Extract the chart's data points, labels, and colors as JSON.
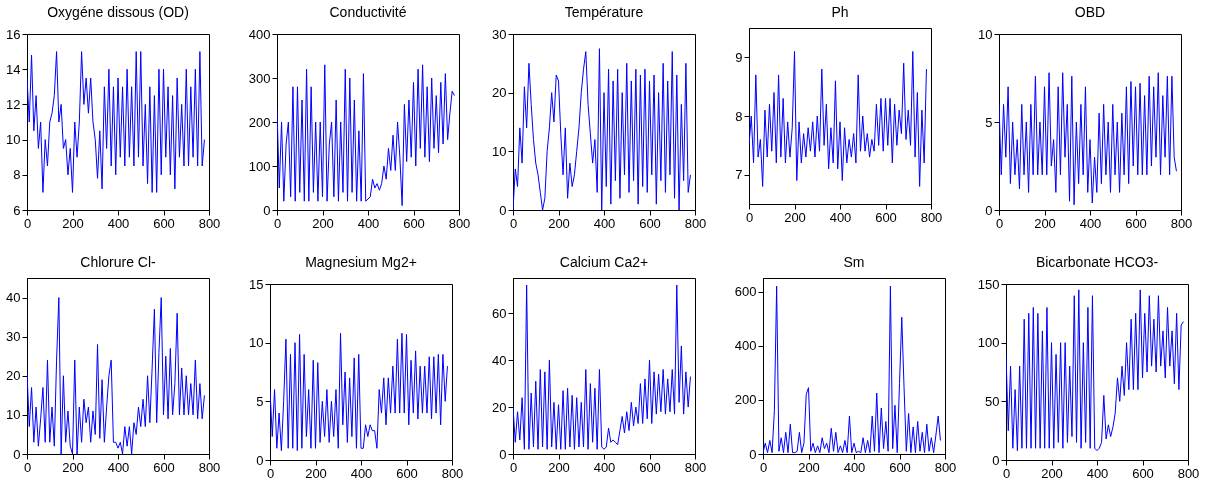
{
  "chart_data": [
    {
      "type": "line",
      "title": "Oxygéne dissous (OD)",
      "xlim": [
        0,
        800
      ],
      "xticks": [
        0,
        200,
        400,
        600,
        800
      ],
      "ylim": [
        6,
        16
      ],
      "yticks": [
        6,
        8,
        10,
        12,
        14,
        16
      ],
      "x": [
        0,
        10,
        20,
        30,
        40,
        50,
        60,
        70,
        80,
        90,
        100,
        110,
        120,
        130,
        140,
        150,
        160,
        170,
        180,
        190,
        200,
        210,
        220,
        230,
        240,
        250,
        260,
        270,
        280,
        290,
        300,
        310,
        320,
        330,
        340,
        350,
        360,
        370,
        380,
        390,
        400,
        410,
        420,
        430,
        440,
        450,
        460,
        470,
        480,
        490,
        500,
        510,
        520,
        530,
        540,
        550,
        560,
        570,
        580,
        590,
        600,
        610,
        620,
        630,
        640,
        650,
        660,
        670,
        680,
        690,
        700,
        710,
        720,
        730,
        740,
        750,
        760,
        770,
        780
      ],
      "series": [
        {
          "color": "#0000ff",
          "values": [
            13.5,
            11,
            14.8,
            10.5,
            12.5,
            9.5,
            11,
            7,
            10,
            8.5,
            11,
            11.5,
            12.5,
            15,
            11,
            12,
            9.5,
            10,
            8,
            9.5,
            7,
            11,
            9,
            11,
            15,
            12,
            13.5,
            11.5,
            13.5,
            11,
            10,
            7.8,
            10.5,
            7.2,
            13,
            9.5,
            14,
            8.5,
            13,
            8,
            13.5,
            9,
            13,
            8.5,
            14,
            9,
            13,
            8.5,
            15,
            9,
            15,
            8.5,
            12,
            7.5,
            13,
            7,
            12.5,
            7,
            14,
            8,
            14,
            9,
            13,
            8,
            12.5,
            7.2,
            13.5,
            9,
            12,
            8.5,
            14,
            8.5,
            13,
            9,
            14,
            8.5,
            15,
            8.5,
            10
          ]
        }
      ]
    },
    {
      "type": "line",
      "title": "Conductivité",
      "xlim": [
        0,
        800
      ],
      "xticks": [
        0,
        200,
        400,
        600,
        800
      ],
      "ylim": [
        0,
        400
      ],
      "yticks": [
        0,
        100,
        200,
        300,
        400
      ],
      "x": [
        0,
        10,
        20,
        30,
        40,
        50,
        60,
        70,
        80,
        90,
        100,
        110,
        120,
        130,
        140,
        150,
        160,
        170,
        180,
        190,
        200,
        210,
        220,
        230,
        240,
        250,
        260,
        270,
        280,
        290,
        300,
        310,
        320,
        330,
        340,
        350,
        360,
        370,
        380,
        390,
        400,
        410,
        420,
        430,
        440,
        450,
        460,
        470,
        480,
        490,
        500,
        510,
        520,
        530,
        540,
        550,
        560,
        570,
        580,
        590,
        600,
        610,
        620,
        630,
        640,
        650,
        660,
        670,
        680,
        690,
        700,
        710,
        720,
        730,
        740,
        750,
        760,
        770,
        780
      ],
      "series": [
        {
          "color": "#0000ff",
          "values": [
            230,
            50,
            200,
            20,
            150,
            200,
            30,
            280,
            20,
            280,
            40,
            250,
            20,
            320,
            20,
            280,
            40,
            200,
            20,
            200,
            30,
            330,
            20,
            150,
            200,
            30,
            250,
            20,
            200,
            40,
            320,
            20,
            300,
            40,
            250,
            20,
            180,
            20,
            310,
            20,
            25,
            30,
            70,
            50,
            60,
            45,
            60,
            100,
            70,
            140,
            90,
            170,
            90,
            200,
            120,
            10,
            240,
            110,
            250,
            120,
            290,
            100,
            320,
            140,
            330,
            120,
            280,
            110,
            300,
            140,
            260,
            130,
            290,
            150,
            310,
            160,
            220,
            270,
            260
          ]
        }
      ]
    },
    {
      "type": "line",
      "title": "Température",
      "xlim": [
        0,
        800
      ],
      "xticks": [
        0,
        200,
        400,
        600,
        800
      ],
      "ylim": [
        0,
        30
      ],
      "yticks": [
        0,
        10,
        20,
        30
      ],
      "x": [
        0,
        10,
        20,
        30,
        40,
        50,
        60,
        70,
        80,
        90,
        100,
        110,
        120,
        130,
        140,
        150,
        160,
        170,
        180,
        190,
        200,
        210,
        220,
        230,
        240,
        250,
        260,
        270,
        280,
        290,
        300,
        310,
        320,
        330,
        340,
        350,
        360,
        370,
        380,
        390,
        400,
        410,
        420,
        430,
        440,
        450,
        460,
        470,
        480,
        490,
        500,
        510,
        520,
        530,
        540,
        550,
        560,
        570,
        580,
        590,
        600,
        610,
        620,
        630,
        640,
        650,
        660,
        670,
        680,
        690,
        700,
        710,
        720,
        730,
        740,
        750,
        760,
        770,
        780
      ],
      "series": [
        {
          "color": "#0000ff",
          "values": [
            0,
            7,
            4,
            14,
            8,
            21,
            14,
            25,
            18,
            12,
            8,
            6,
            3,
            0,
            2,
            10,
            14,
            20,
            15,
            23,
            22,
            13,
            6,
            14,
            2,
            8,
            4,
            6,
            10,
            14,
            20,
            24,
            27,
            18,
            13,
            8,
            12,
            3,
            27.5,
            0,
            20,
            4,
            24,
            1,
            22,
            5,
            24,
            2,
            20,
            6,
            25,
            3,
            22,
            5,
            24,
            1,
            23,
            4,
            24,
            3,
            22,
            6,
            23,
            1,
            20,
            5,
            25,
            3,
            22,
            6,
            27,
            2,
            23,
            0,
            18,
            5,
            25,
            3,
            6
          ]
        }
      ]
    },
    {
      "type": "line",
      "title": "Ph",
      "xlim": [
        0,
        800
      ],
      "xticks": [
        0,
        200,
        400,
        600,
        800
      ],
      "ylim": [
        6.5,
        9.5
      ],
      "yticks": [
        7,
        8,
        9
      ],
      "x": [
        0,
        10,
        20,
        30,
        40,
        50,
        60,
        70,
        80,
        90,
        100,
        110,
        120,
        130,
        140,
        150,
        160,
        170,
        180,
        190,
        200,
        210,
        220,
        230,
        240,
        250,
        260,
        270,
        280,
        290,
        300,
        310,
        320,
        330,
        340,
        350,
        360,
        370,
        380,
        390,
        400,
        410,
        420,
        430,
        440,
        450,
        460,
        470,
        480,
        490,
        500,
        510,
        520,
        530,
        540,
        550,
        560,
        570,
        580,
        590,
        600,
        610,
        620,
        630,
        640,
        650,
        660,
        670,
        680,
        690,
        700,
        710,
        720,
        730,
        740,
        750,
        760,
        770,
        780
      ],
      "series": [
        {
          "color": "#0000ff",
          "values": [
            7.5,
            8,
            7.2,
            8.7,
            7.3,
            7.6,
            6.8,
            8.1,
            7.3,
            8.2,
            7.4,
            8.4,
            7.2,
            8.7,
            7.3,
            8.3,
            7.2,
            7.9,
            7.3,
            7.8,
            9.1,
            6.9,
            7.9,
            7.2,
            7.7,
            7.3,
            7.8,
            7.4,
            7.9,
            7.3,
            8,
            7.4,
            8.8,
            7.5,
            8.2,
            7.1,
            7.8,
            7.2,
            8.6,
            7.1,
            7.9,
            6.9,
            7.8,
            7.2,
            7.6,
            7.3,
            7.7,
            7.2,
            8.7,
            7.4,
            8,
            7.4,
            7.7,
            7.3,
            7.6,
            7.4,
            8.2,
            7.5,
            8.3,
            7.4,
            8.3,
            7.5,
            8.3,
            7.2,
            8.2,
            7.5,
            8.1,
            7.7,
            8.9,
            7.6,
            8.1,
            7.5,
            9.1,
            7.3,
            8.4,
            6.8,
            8.1,
            7.2,
            8.8
          ]
        }
      ]
    },
    {
      "type": "line",
      "title": "OBD",
      "xlim": [
        0,
        800
      ],
      "xticks": [
        0,
        200,
        400,
        600,
        800
      ],
      "ylim": [
        0,
        10
      ],
      "yticks": [
        0,
        5,
        10
      ],
      "x": [
        0,
        10,
        20,
        30,
        40,
        50,
        60,
        70,
        80,
        90,
        100,
        110,
        120,
        130,
        140,
        150,
        160,
        170,
        180,
        190,
        200,
        210,
        220,
        230,
        240,
        250,
        260,
        270,
        280,
        290,
        300,
        310,
        320,
        330,
        340,
        350,
        360,
        370,
        380,
        390,
        400,
        410,
        420,
        430,
        440,
        450,
        460,
        470,
        480,
        490,
        500,
        510,
        520,
        530,
        540,
        550,
        560,
        570,
        580,
        590,
        600,
        610,
        620,
        630,
        640,
        650,
        660,
        670,
        680,
        690,
        700,
        710,
        720,
        730,
        740,
        750,
        760,
        770,
        780
      ],
      "series": [
        {
          "color": "#0000ff",
          "values": [
            6,
            2,
            6,
            3,
            7,
            1.5,
            5,
            2,
            4,
            1.2,
            6,
            2,
            5,
            1,
            6,
            2,
            7.6,
            2,
            5,
            2,
            7,
            2,
            7.8,
            2.5,
            4,
            1,
            7,
            2,
            7.8,
            3,
            6,
            0.5,
            7.6,
            0.3,
            5,
            1.5,
            6,
            2,
            7,
            1,
            4,
            0.4,
            3,
            1,
            5.5,
            1.5,
            6,
            2,
            5,
            1,
            6,
            2,
            5,
            1,
            5.5,
            2,
            7,
            1.5,
            7.3,
            2.5,
            7,
            2,
            7.2,
            2,
            6.5,
            2,
            7.6,
            2.5,
            7,
            3,
            7.8,
            2,
            6.5,
            3,
            7.6,
            2,
            7.6,
            3,
            2.2
          ]
        }
      ]
    },
    {
      "type": "line",
      "title": "Chlorure Cl-",
      "xlim": [
        0,
        800
      ],
      "xticks": [
        0,
        200,
        400,
        600,
        800
      ],
      "ylim": [
        0,
        45
      ],
      "yticks": [
        0,
        10,
        20,
        30,
        40
      ],
      "x": [
        0,
        10,
        20,
        30,
        40,
        50,
        60,
        70,
        80,
        90,
        100,
        110,
        120,
        130,
        140,
        150,
        160,
        170,
        180,
        190,
        200,
        210,
        220,
        230,
        240,
        250,
        260,
        270,
        280,
        290,
        300,
        310,
        320,
        330,
        340,
        350,
        360,
        370,
        380,
        390,
        400,
        410,
        420,
        430,
        440,
        450,
        460,
        470,
        480,
        490,
        500,
        510,
        520,
        530,
        540,
        550,
        560,
        570,
        580,
        590,
        600,
        610,
        620,
        630,
        640,
        650,
        660,
        670,
        680,
        690,
        700,
        710,
        720,
        730,
        740,
        750,
        760,
        770,
        780
      ],
      "series": [
        {
          "color": "#0000ff",
          "values": [
            21,
            7,
            17,
            3,
            12,
            2,
            9,
            17,
            3,
            24,
            3,
            12,
            2,
            24,
            40,
            0,
            20,
            3,
            11,
            2,
            0,
            24,
            0,
            12,
            3,
            14,
            8,
            12,
            3,
            11,
            5,
            28,
            4,
            19,
            3,
            12,
            20,
            24,
            3,
            3,
            1.5,
            3,
            0,
            7,
            2,
            7,
            0,
            8,
            5,
            12,
            7,
            14,
            7,
            20,
            8,
            22,
            37,
            8,
            26,
            40,
            10,
            25,
            9,
            27,
            10,
            18,
            36,
            10,
            22,
            10,
            20,
            10,
            18,
            10,
            24,
            9,
            18,
            9,
            15
          ]
        }
      ]
    },
    {
      "type": "line",
      "title": "Magnesium Mg2+",
      "xlim": [
        0,
        800
      ],
      "xticks": [
        0,
        200,
        400,
        600,
        800
      ],
      "ylim": [
        0,
        15
      ],
      "yticks": [
        0,
        5,
        10,
        15
      ],
      "x": [
        0,
        10,
        20,
        30,
        40,
        50,
        60,
        70,
        80,
        90,
        100,
        110,
        120,
        130,
        140,
        150,
        160,
        170,
        180,
        190,
        200,
        210,
        220,
        230,
        240,
        250,
        260,
        270,
        280,
        290,
        300,
        310,
        320,
        330,
        340,
        350,
        360,
        370,
        380,
        390,
        400,
        410,
        420,
        430,
        440,
        450,
        460,
        470,
        480,
        490,
        500,
        510,
        520,
        530,
        540,
        550,
        560,
        570,
        580,
        590,
        600,
        610,
        620,
        630,
        640,
        650,
        660,
        670,
        680,
        690,
        700,
        710,
        720,
        730,
        740,
        750,
        760,
        770,
        780
      ],
      "series": [
        {
          "color": "#0000ff",
          "values": [
            6,
            2,
            6,
            1,
            4,
            0.8,
            5,
            10.3,
            1,
            9,
            1,
            10,
            0.8,
            10.7,
            1,
            9,
            2,
            6,
            1,
            8.5,
            1,
            8.3,
            1.5,
            5,
            2,
            6,
            1.5,
            5,
            2,
            6,
            1,
            10.8,
            3,
            7.5,
            1.5,
            7,
            2,
            8.7,
            1,
            9,
            1,
            1,
            3,
            2,
            3,
            2.5,
            2.5,
            1,
            6,
            4,
            7,
            3,
            7,
            4,
            8,
            4,
            10.3,
            4,
            10.8,
            4,
            10.7,
            3,
            8.5,
            4,
            9.3,
            3.5,
            8,
            4,
            8,
            4,
            8.8,
            3.5,
            8.8,
            4,
            9,
            3,
            9,
            5,
            8
          ]
        }
      ]
    },
    {
      "type": "line",
      "title": "Calcium Ca2+",
      "xlim": [
        0,
        800
      ],
      "xticks": [
        0,
        200,
        400,
        600,
        800
      ],
      "ylim": [
        0,
        75
      ],
      "yticks": [
        0,
        20,
        40,
        60
      ],
      "x": [
        0,
        10,
        20,
        30,
        40,
        50,
        60,
        70,
        80,
        90,
        100,
        110,
        120,
        130,
        140,
        150,
        160,
        170,
        180,
        190,
        200,
        210,
        220,
        230,
        240,
        250,
        260,
        270,
        280,
        290,
        300,
        310,
        320,
        330,
        340,
        350,
        360,
        370,
        380,
        390,
        400,
        410,
        420,
        430,
        440,
        450,
        460,
        470,
        480,
        490,
        500,
        510,
        520,
        530,
        540,
        550,
        560,
        570,
        580,
        590,
        600,
        610,
        620,
        630,
        640,
        650,
        660,
        670,
        680,
        690,
        700,
        710,
        720,
        730,
        740,
        750,
        760,
        770,
        780
      ],
      "series": [
        {
          "color": "#0000ff",
          "values": [
            20,
            5,
            18,
            6,
            24,
            2,
            72,
            2,
            26,
            3,
            31,
            2,
            36,
            3,
            35,
            2,
            40,
            3,
            22,
            2,
            21,
            2,
            27,
            2,
            28,
            3,
            25,
            2,
            24,
            3,
            22,
            3,
            36,
            2,
            30,
            5,
            28,
            2,
            36,
            3,
            2,
            3,
            11,
            5,
            6,
            5,
            4,
            10,
            16,
            9,
            18,
            10,
            22,
            12,
            20,
            13,
            30,
            13,
            32,
            15,
            40,
            13,
            35,
            17,
            34,
            18,
            36,
            17,
            32,
            18,
            36,
            17,
            72,
            22,
            46,
            17,
            35,
            20,
            33
          ]
        }
      ]
    },
    {
      "type": "line",
      "title": "Sm",
      "xlim": [
        0,
        800
      ],
      "xticks": [
        0,
        200,
        400,
        600,
        800
      ],
      "ylim": [
        0,
        650
      ],
      "yticks": [
        0,
        200,
        400,
        600
      ],
      "x": [
        0,
        10,
        20,
        30,
        40,
        50,
        60,
        70,
        80,
        90,
        100,
        110,
        120,
        130,
        140,
        150,
        160,
        170,
        180,
        190,
        200,
        210,
        220,
        230,
        240,
        250,
        260,
        270,
        280,
        290,
        300,
        310,
        320,
        330,
        340,
        350,
        360,
        370,
        380,
        390,
        400,
        410,
        420,
        430,
        440,
        450,
        460,
        470,
        480,
        490,
        500,
        510,
        520,
        530,
        540,
        550,
        560,
        570,
        580,
        590,
        600,
        610,
        620,
        630,
        640,
        650,
        660,
        670,
        680,
        690,
        700,
        710,
        720,
        730,
        740,
        750,
        760,
        770,
        780
      ],
      "series": [
        {
          "color": "#0000ff",
          "values": [
            5,
            40,
            5,
            50,
            5,
            160,
            620,
            10,
            60,
            5,
            80,
            5,
            110,
            5,
            5,
            10,
            80,
            5,
            40,
            220,
            245,
            10,
            40,
            5,
            30,
            5,
            60,
            20,
            40,
            5,
            95,
            10,
            80,
            5,
            30,
            5,
            50,
            5,
            140,
            5,
            40,
            5,
            10,
            5,
            60,
            5,
            50,
            5,
            140,
            10,
            225,
            5,
            170,
            20,
            120,
            10,
            620,
            20,
            180,
            5,
            260,
            505,
            245,
            10,
            150,
            5,
            100,
            5,
            120,
            10,
            80,
            5,
            110,
            10,
            60,
            5,
            70,
            140,
            50
          ]
        }
      ]
    },
    {
      "type": "line",
      "title": "Bicarbonate HCO3-",
      "xlim": [
        0,
        800
      ],
      "xticks": [
        0,
        200,
        400,
        600,
        800
      ],
      "ylim": [
        0,
        150
      ],
      "yticks": [
        0,
        50,
        100,
        150
      ],
      "x": [
        0,
        10,
        20,
        30,
        40,
        50,
        60,
        70,
        80,
        90,
        100,
        110,
        120,
        130,
        140,
        150,
        160,
        170,
        180,
        190,
        200,
        210,
        220,
        230,
        240,
        250,
        260,
        270,
        280,
        290,
        300,
        310,
        320,
        330,
        340,
        350,
        360,
        370,
        380,
        390,
        400,
        410,
        420,
        430,
        440,
        450,
        460,
        470,
        480,
        490,
        500,
        510,
        520,
        530,
        540,
        550,
        560,
        570,
        580,
        590,
        600,
        610,
        620,
        630,
        640,
        650,
        660,
        670,
        680,
        690,
        700,
        710,
        720,
        730,
        740,
        750,
        760,
        770,
        780
      ],
      "series": [
        {
          "color": "#0000ff",
          "values": [
            90,
            25,
            80,
            10,
            60,
            8,
            80,
            10,
            120,
            10,
            125,
            10,
            130,
            10,
            125,
            10,
            110,
            10,
            130,
            10,
            100,
            10,
            90,
            15,
            100,
            10,
            100,
            15,
            80,
            20,
            140,
            15,
            145,
            10,
            100,
            15,
            130,
            10,
            140,
            10,
            8,
            10,
            15,
            55,
            18,
            30,
            20,
            28,
            40,
            70,
            50,
            80,
            55,
            100,
            60,
            120,
            60,
            125,
            60,
            145,
            70,
            125,
            75,
            140,
            80,
            120,
            75,
            140,
            80,
            110,
            70,
            130,
            80,
            110,
            65,
            125,
            60,
            115,
            118
          ]
        }
      ]
    }
  ]
}
